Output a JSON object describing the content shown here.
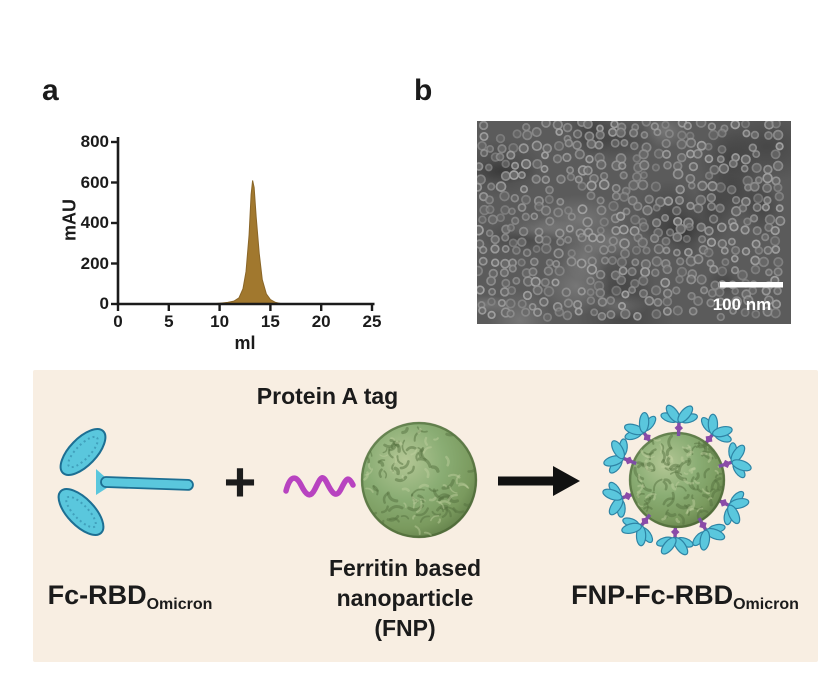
{
  "figure": {
    "panel_a_label": "a",
    "panel_b_label": "b"
  },
  "chart_data": {
    "type": "area",
    "title": "",
    "xlabel": "ml",
    "ylabel": "mAU",
    "xlim": [
      0,
      25
    ],
    "ylim": [
      0,
      800
    ],
    "xticks": [
      0,
      5,
      10,
      15,
      20,
      25
    ],
    "yticks": [
      0,
      200,
      400,
      600,
      800
    ],
    "grid": false,
    "legend": "none",
    "series": [
      {
        "name": "elution-profile",
        "x": [
          0,
          9,
          10,
          10.8,
          11.4,
          11.9,
          12.3,
          12.6,
          12.9,
          13.1,
          13.25,
          13.4,
          13.6,
          13.9,
          14.2,
          14.6,
          15.0,
          15.5,
          16.2,
          25
        ],
        "y": [
          0,
          0,
          4,
          8,
          14,
          30,
          75,
          160,
          340,
          540,
          610,
          575,
          430,
          250,
          120,
          50,
          22,
          8,
          0,
          0
        ]
      }
    ],
    "peak": {
      "x_ml": 13.25,
      "y_mAU": 610
    }
  },
  "em_panel": {
    "scale_bar_label": "100 nm"
  },
  "schematic": {
    "title": "Protein A tag",
    "plus_sign": "+",
    "fc_rbd_label": {
      "main": "Fc-RBD",
      "sub": "Omicron"
    },
    "fnp_label_lines": [
      "Ferritin based",
      "nanoparticle",
      "(FNP)"
    ],
    "product_label": {
      "main": "FNP-Fc-RBD",
      "sub": "Omicron"
    }
  },
  "colors": {
    "peak_fill": "#a1782e",
    "panel_bg": "#f8eee2",
    "antibody_cyan": "#5ac7dd",
    "protein_a_tag_magenta": "#b843c0",
    "nanoparticle_green": "#7fa468",
    "em_background": "#5b5b5b",
    "text": "#1b1b1b"
  }
}
